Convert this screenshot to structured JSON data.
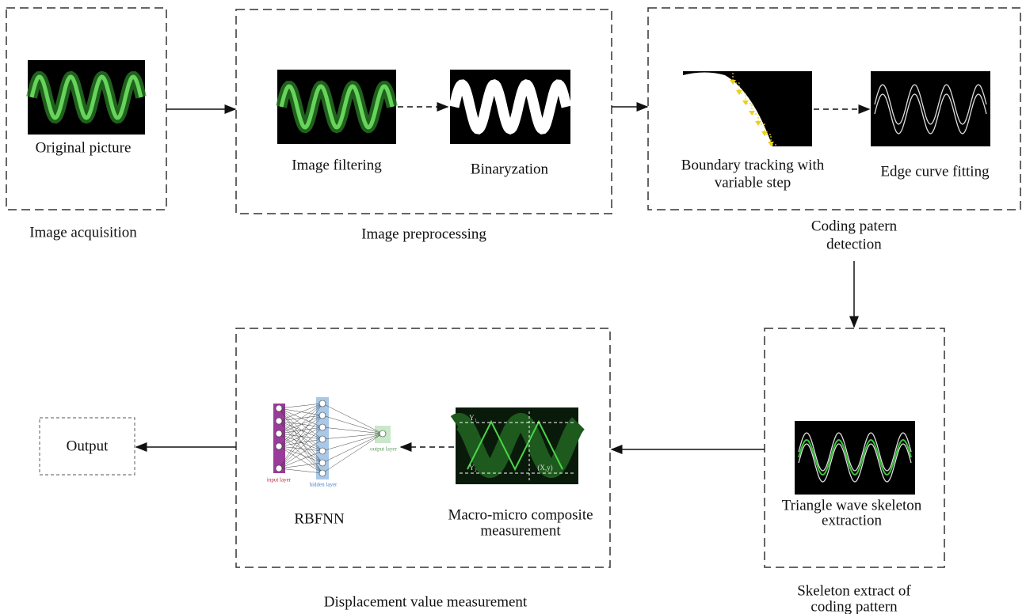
{
  "stages": [
    {
      "label": "Image acquisition",
      "steps": [
        {
          "label": [
            "Original picture"
          ]
        }
      ]
    },
    {
      "label": "Image preprocessing",
      "steps": [
        {
          "label": [
            "Image filtering"
          ]
        },
        {
          "label": [
            "Binaryzation"
          ]
        }
      ]
    },
    {
      "label": [
        "Coding patern",
        "detection"
      ],
      "steps": [
        {
          "label": [
            "Boundary tracking with",
            "variable step"
          ]
        },
        {
          "label": [
            "Edge curve fitting"
          ]
        }
      ]
    },
    {
      "label": [
        "Skeleton extract of",
        "coding pattern"
      ],
      "steps": [
        {
          "label": [
            "Triangle wave skeleton",
            "extraction"
          ]
        }
      ]
    },
    {
      "label": "Displacement value measurement",
      "steps": [
        {
          "label": [
            "Macro-micro composite",
            "measurement"
          ],
          "annotations": [
            "Y₁",
            "Y₂",
            "(X,y)"
          ]
        },
        {
          "label": [
            "RBFNN"
          ],
          "layers": [
            "input layer",
            "hidden layer",
            "output layer"
          ]
        }
      ]
    }
  ],
  "output": {
    "label": "Output"
  }
}
